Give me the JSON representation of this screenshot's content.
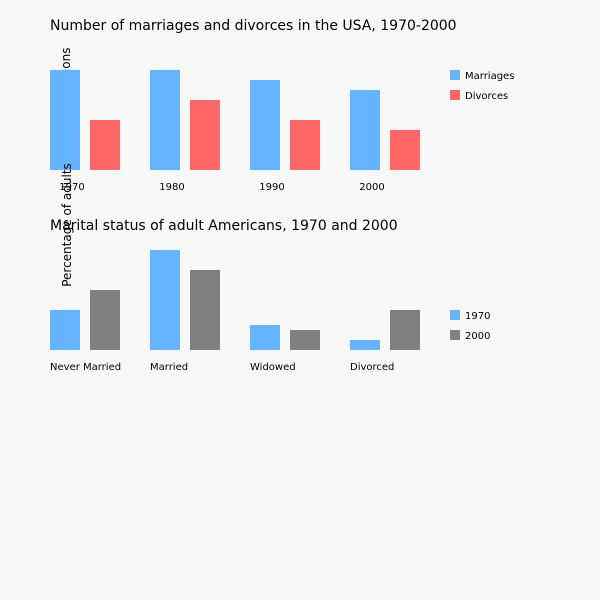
{
  "chart_data": [
    {
      "type": "bar",
      "title": "Number of marriages and divorces in the USA, 1970-2000",
      "ylabel": "Millions",
      "categories": [
        "1970",
        "1980",
        "1990",
        "2000"
      ],
      "series": [
        {
          "name": "Marriages",
          "color": "#66b3ff",
          "values": [
            2.5,
            2.5,
            2.25,
            2.0
          ]
        },
        {
          "name": "Divorces",
          "color": "#ff6666",
          "values": [
            1.25,
            1.75,
            1.25,
            1.0
          ]
        }
      ],
      "ylim": [
        0,
        2.5
      ],
      "legend": "right",
      "grid": false
    },
    {
      "type": "bar",
      "title": "Marital status of adult Americans, 1970 and 2000",
      "ylabel": "Percentage of adults",
      "categories": [
        "Never Married",
        "Married",
        "Widowed",
        "Divorced"
      ],
      "series": [
        {
          "name": "1970",
          "color": "#66b3ff",
          "values": [
            20,
            50,
            12.5,
            5
          ]
        },
        {
          "name": "2000",
          "color": "#808080",
          "values": [
            30,
            40,
            10,
            20
          ]
        }
      ],
      "ylim": [
        0,
        50
      ],
      "legend": "right",
      "grid": false
    }
  ]
}
